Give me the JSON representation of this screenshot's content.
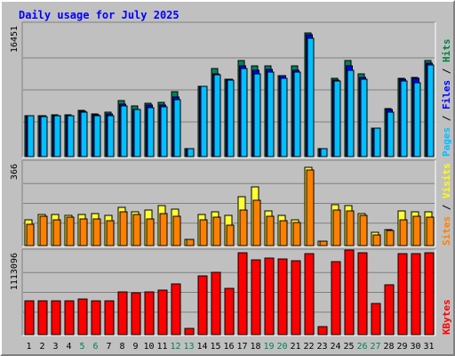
{
  "chart_data": {
    "type": "bar",
    "title": "Daily usage for July 2025",
    "categories": [
      "1",
      "2",
      "3",
      "4",
      "5",
      "6",
      "7",
      "8",
      "9",
      "10",
      "11",
      "12",
      "13",
      "14",
      "15",
      "16",
      "17",
      "18",
      "19",
      "20",
      "21",
      "22",
      "23",
      "24",
      "25",
      "26",
      "27",
      "28",
      "29",
      "30",
      "31"
    ],
    "weekend_days": [
      5,
      6,
      12,
      13,
      19,
      20,
      26,
      27
    ],
    "panels": [
      {
        "name": "hits-panel",
        "ymax_label": "16451",
        "ymax": 16451,
        "legend": [
          "Pages",
          "Files",
          "Hits"
        ],
        "legend_colors": [
          "#00c0ff",
          "#0000ff",
          "#008040"
        ],
        "series": [
          {
            "name": "Hits",
            "color": "#00805c",
            "values": [
              5300,
              5200,
              5400,
              5400,
              5900,
              5500,
              5700,
              7200,
              6500,
              6800,
              7000,
              8300,
              1000,
              9000,
              11300,
              9900,
              12300,
              11600,
              11700,
              10400,
              11600,
              15900,
              1000,
              10000,
              12300,
              10600,
              3700,
              6200,
              10000,
              10200,
              12300
            ]
          },
          {
            "name": "Files",
            "color": "#0000ff",
            "values": [
              5300,
              5200,
              5300,
              5300,
              5800,
              5400,
              5500,
              6700,
              6100,
              6600,
              6600,
              7700,
              1000,
              9000,
              10600,
              9900,
              11700,
              11100,
              11200,
              10400,
              11100,
              15600,
              1000,
              9800,
              11600,
              10200,
              3700,
              6000,
              9900,
              10000,
              12000
            ]
          },
          {
            "name": "Pages",
            "color": "#00c0ff",
            "values": [
              5200,
              5100,
              5200,
              5200,
              5700,
              5300,
              5300,
              6500,
              6000,
              6300,
              6400,
              7300,
              1000,
              9000,
              10500,
              9800,
              11300,
              10600,
              10800,
              10100,
              10800,
              15200,
              1000,
              9700,
              11100,
              9900,
              3700,
              5700,
              9700,
              9500,
              11800
            ]
          }
        ]
      },
      {
        "name": "visits-panel",
        "ymax_label": "366",
        "ymax": 366,
        "legend": [
          "Sites",
          "Visits"
        ],
        "legend_colors": [
          "#ff8000",
          "#ffff00"
        ],
        "series": [
          {
            "name": "Visits",
            "color": "#ffff33",
            "values": [
              120,
              145,
              145,
              140,
              145,
              150,
              140,
              175,
              155,
              165,
              185,
              170,
              30,
              145,
              155,
              140,
              225,
              270,
              160,
              140,
              120,
              360,
              20,
              190,
              185,
              150,
              60,
              75,
              160,
              155,
              155
            ]
          },
          {
            "name": "Sites",
            "color": "#ff8000",
            "values": [
              100,
              135,
              120,
              130,
              125,
              125,
              115,
              155,
              145,
              125,
              150,
              135,
              30,
              120,
              130,
              95,
              165,
              210,
              135,
              115,
              105,
              350,
              20,
              165,
              160,
              140,
              50,
              70,
              120,
              135,
              130
            ]
          }
        ]
      },
      {
        "name": "kbytes-panel",
        "ymax_label": "1113096",
        "ymax": 1113096,
        "legend": [
          "KBytes"
        ],
        "legend_colors": [
          "#ff0000"
        ],
        "series": [
          {
            "name": "KBytes",
            "color": "#ff0000",
            "values": [
              470000,
              470000,
              470000,
              470000,
              500000,
              470000,
              470000,
              600000,
              590000,
              600000,
              620000,
              710000,
              90000,
              830000,
              880000,
              650000,
              1150000,
              1050000,
              1080000,
              1060000,
              1040000,
              1140000,
              110000,
              1020000,
              1190000,
              1150000,
              440000,
              700000,
              1140000,
              1140000,
              1150000
            ]
          }
        ]
      }
    ]
  }
}
